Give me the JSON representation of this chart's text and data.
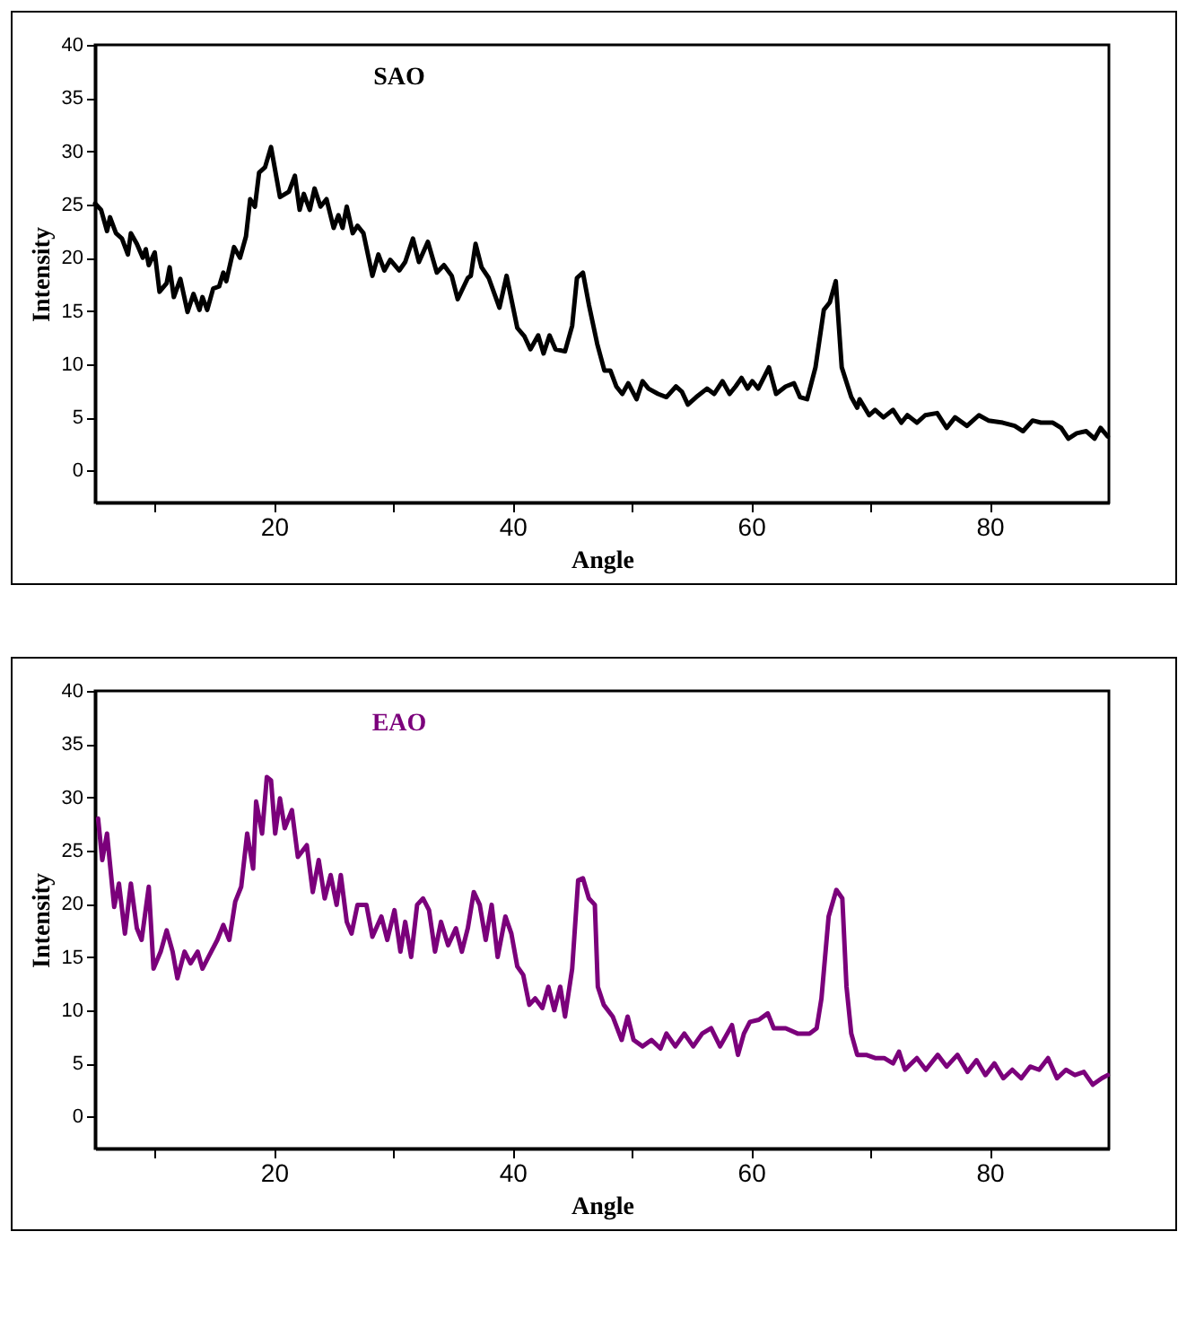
{
  "chart_data": [
    {
      "type": "line",
      "xlabel": "Angle",
      "ylabel": "Intensity",
      "legend": "top",
      "grid": false,
      "xlim": [
        5,
        90
      ],
      "ylim": [
        -3,
        40
      ],
      "xticks": [
        {
          "value": 10,
          "label": null
        },
        20,
        {
          "value": 30,
          "label": null
        },
        40,
        {
          "value": 50,
          "label": null
        },
        60,
        {
          "value": 70,
          "label": null
        },
        80
      ],
      "yticks": [
        0,
        5,
        10,
        15,
        20,
        25,
        30,
        35,
        40
      ],
      "series": [
        {
          "name": "SAO",
          "color": "#000000",
          "x": [
            5,
            5.5,
            6,
            6.25,
            6.75,
            7.25,
            7.75,
            8,
            8.5,
            9,
            9.25,
            9.5,
            10,
            10.4,
            11,
            11.25,
            11.6,
            12.15,
            12.75,
            13.25,
            13.75,
            14,
            14.4,
            14.9,
            15.4,
            15.75,
            16,
            16.65,
            17.15,
            17.65,
            18,
            18.4,
            18.75,
            19.25,
            19.75,
            20.1,
            20.5,
            21.25,
            21.75,
            22.15,
            22.5,
            23,
            23.4,
            23.9,
            24.4,
            25,
            25.4,
            25.75,
            26.1,
            26.6,
            27,
            27.5,
            28.25,
            28.75,
            29.25,
            29.75,
            30.5,
            31,
            31.65,
            32.15,
            32.9,
            33.65,
            34.25,
            34.9,
            35.4,
            36.25,
            36.5,
            36.9,
            37.4,
            38,
            38.9,
            39.5,
            40.4,
            41,
            41.5,
            42.15,
            42.6,
            43.1,
            43.6,
            44.4,
            45,
            45.4,
            45.9,
            46.4,
            47.1,
            47.7,
            48.2,
            48.7,
            49.2,
            49.7,
            50.4,
            50.9,
            51.4,
            52.2,
            52.9,
            53.7,
            54.2,
            54.7,
            55.4,
            56.3,
            56.9,
            57.6,
            58.2,
            58.7,
            59.2,
            59.7,
            60.1,
            60.6,
            61.5,
            62.1,
            62.9,
            63.6,
            64.1,
            64.7,
            65.4,
            66.1,
            66.6,
            67.1,
            67.6,
            68.4,
            68.9,
            69.1,
            69.9,
            70.4,
            71.1,
            71.9,
            72.6,
            73.1,
            73.9,
            74.6,
            75.6,
            76.4,
            77.1,
            78.1,
            79.1,
            79.9,
            81.1,
            82.1,
            82.8,
            83.6,
            84.3,
            85.3,
            86,
            86.6,
            87.3,
            88.1,
            88.8,
            89.3,
            89.9
          ],
          "values": [
            25.1,
            24.5,
            22.5,
            23.8,
            22.3,
            21.8,
            20.3,
            22.3,
            21.3,
            20,
            20.8,
            19.3,
            20.5,
            16.8,
            17.6,
            19.1,
            16.3,
            18,
            14.9,
            16.6,
            15.1,
            16.3,
            15.1,
            17.1,
            17.3,
            18.6,
            17.8,
            21,
            20,
            22,
            25.5,
            24.8,
            28,
            28.5,
            30.4,
            28.2,
            25.7,
            26.2,
            27.7,
            24.5,
            26,
            24.5,
            26.5,
            24.8,
            25.5,
            22.8,
            24,
            22.8,
            24.8,
            22.3,
            23,
            22.3,
            18.3,
            20.3,
            18.8,
            19.8,
            18.8,
            19.6,
            21.8,
            19.6,
            21.5,
            18.6,
            19.3,
            18.3,
            16.1,
            18.1,
            18.3,
            21.3,
            19.1,
            18.1,
            15.3,
            18.3,
            13.4,
            12.6,
            11.4,
            12.7,
            11,
            12.7,
            11.4,
            11.2,
            13.6,
            18.1,
            18.6,
            15.6,
            11.9,
            9.4,
            9.4,
            7.9,
            7.2,
            8.2,
            6.7,
            8.4,
            7.7,
            7.2,
            6.9,
            7.9,
            7.4,
            6.2,
            6.9,
            7.7,
            7.2,
            8.4,
            7.2,
            7.9,
            8.7,
            7.7,
            8.4,
            7.7,
            9.7,
            7.2,
            7.9,
            8.2,
            6.9,
            6.7,
            9.7,
            15.1,
            15.8,
            17.8,
            9.7,
            6.9,
            5.9,
            6.7,
            5.2,
            5.7,
            5,
            5.7,
            4.5,
            5.2,
            4.5,
            5.2,
            5.4,
            4,
            5,
            4.2,
            5.2,
            4.7,
            4.5,
            4.2,
            3.7,
            4.7,
            4.5,
            4.5,
            4,
            3,
            3.5,
            3.7,
            3,
            4,
            3.2
          ]
        }
      ]
    },
    {
      "type": "line",
      "xlabel": "Angle",
      "ylabel": "Intensity",
      "legend": "top",
      "grid": false,
      "xlim": [
        5,
        90
      ],
      "ylim": [
        -3,
        40
      ],
      "xticks": [
        {
          "value": 10,
          "label": null
        },
        20,
        {
          "value": 30,
          "label": null
        },
        40,
        {
          "value": 50,
          "label": null
        },
        60,
        {
          "value": 70,
          "label": null
        },
        80
      ],
      "yticks": [
        0,
        5,
        10,
        15,
        20,
        25,
        30,
        35,
        40
      ],
      "series": [
        {
          "name": "EAO",
          "color": "#7b007b",
          "x": [
            5.25,
            5.6,
            6,
            6.6,
            7,
            7.5,
            8,
            8.5,
            8.9,
            9.5,
            9.9,
            10.5,
            11,
            11.5,
            11.9,
            12.5,
            13,
            13.6,
            14,
            14.5,
            15.25,
            15.75,
            16.25,
            16.75,
            17.25,
            17.75,
            18.25,
            18.5,
            19,
            19.4,
            19.75,
            20.1,
            20.5,
            20.9,
            21.5,
            22,
            22.75,
            23.25,
            23.75,
            24.25,
            24.75,
            25.25,
            25.6,
            26.1,
            26.5,
            27,
            27.75,
            28.25,
            29,
            29.5,
            30.1,
            30.6,
            31,
            31.5,
            32,
            32.5,
            33,
            33.5,
            34,
            34.6,
            35.25,
            35.75,
            36.25,
            36.75,
            37.25,
            37.75,
            38.25,
            38.75,
            39.4,
            39.9,
            40.4,
            40.9,
            41.4,
            41.9,
            42.5,
            43,
            43.5,
            44,
            44.4,
            45,
            45.5,
            45.9,
            46.4,
            46.9,
            47.15,
            47.65,
            48.4,
            49.15,
            49.65,
            50.15,
            50.9,
            51.65,
            52.4,
            52.9,
            53.65,
            54.4,
            55.15,
            55.9,
            56.65,
            57.4,
            58.4,
            58.9,
            59.4,
            59.9,
            60.65,
            61.4,
            61.9,
            62.9,
            63.9,
            64.9,
            65.5,
            65.9,
            66.5,
            67.15,
            67.65,
            68,
            68.4,
            68.9,
            69.65,
            70.4,
            71.15,
            71.9,
            72.4,
            72.9,
            73.9,
            74.65,
            75.65,
            76.4,
            77.3,
            78.15,
            78.9,
            79.65,
            80.4,
            81.15,
            81.9,
            82.65,
            83.4,
            84.15,
            84.9,
            85.65,
            86.4,
            87.15,
            87.9,
            88.65,
            89.4,
            89.9
          ],
          "values": [
            28,
            24.1,
            26.6,
            19.7,
            21.9,
            17.2,
            21.9,
            17.7,
            16.6,
            21.6,
            13.9,
            15.5,
            17.5,
            15.5,
            13,
            15.5,
            14.4,
            15.5,
            13.9,
            15,
            16.6,
            18,
            16.6,
            20.2,
            21.6,
            26.6,
            23.3,
            29.6,
            26.6,
            31.9,
            31.6,
            26.6,
            29.9,
            27.1,
            28.8,
            24.4,
            25.5,
            21.1,
            24.1,
            20.5,
            22.7,
            19.9,
            22.7,
            18.3,
            17.2,
            19.9,
            19.9,
            16.9,
            18.8,
            16.6,
            19.4,
            15.5,
            18.3,
            15,
            19.9,
            20.5,
            19.4,
            15.5,
            18.3,
            16.1,
            17.7,
            15.5,
            17.7,
            21.1,
            19.9,
            16.6,
            19.9,
            15,
            18.8,
            17.2,
            14.1,
            13.3,
            10.5,
            11.1,
            10.2,
            12.2,
            10,
            12.2,
            9.4,
            13.9,
            22.2,
            22.4,
            20.5,
            19.9,
            12.2,
            10.5,
            9.4,
            7.2,
            9.4,
            7.2,
            6.6,
            7.2,
            6.4,
            7.8,
            6.6,
            7.8,
            6.6,
            7.8,
            8.3,
            6.6,
            8.6,
            5.8,
            7.8,
            8.9,
            9.1,
            9.7,
            8.3,
            8.3,
            7.8,
            7.8,
            8.3,
            11.1,
            18.8,
            21.3,
            20.5,
            12.2,
            7.8,
            5.8,
            5.8,
            5.5,
            5.5,
            5,
            6.1,
            4.4,
            5.5,
            4.4,
            5.8,
            4.7,
            5.8,
            4.2,
            5.3,
            3.9,
            5,
            3.6,
            4.4,
            3.6,
            4.7,
            4.4,
            5.5,
            3.6,
            4.4,
            3.9,
            4.2,
            3,
            3.6,
            3.9
          ]
        }
      ]
    }
  ]
}
